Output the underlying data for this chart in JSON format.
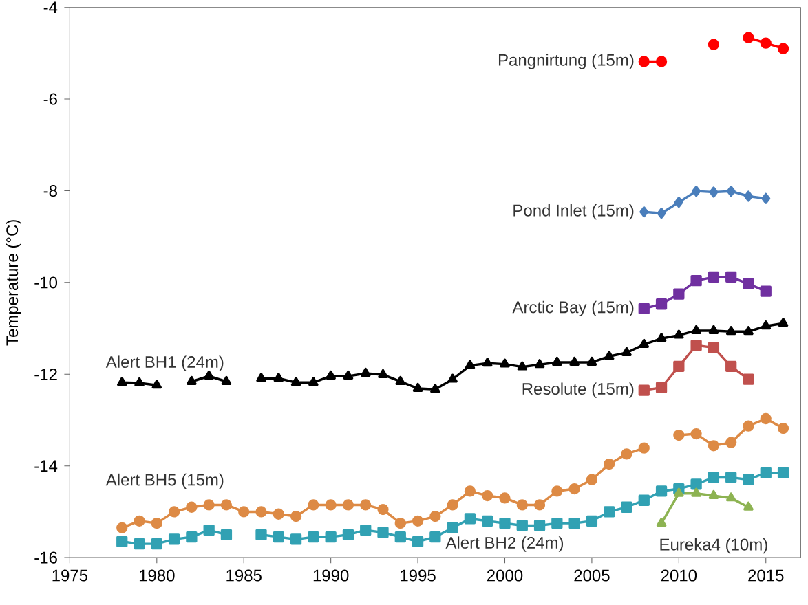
{
  "chart_data": {
    "type": "line",
    "ylabel": "Temperature (°C)",
    "xlim": [
      1975,
      2017
    ],
    "xticks": [
      1975,
      1980,
      1985,
      1990,
      1995,
      2000,
      2005,
      2010,
      2015
    ],
    "ylim": [
      -16,
      -4
    ],
    "yticks": [
      -16,
      -14,
      -12,
      -10,
      -8,
      -6,
      -4
    ],
    "line_style": "solid",
    "series": [
      {
        "name": "Pangnirtung (15m)",
        "color": "#ff0000",
        "marker": "circle",
        "x": [
          2008,
          2009,
          2010,
          2011,
          2012,
          2013,
          2014,
          2015,
          2016
        ],
        "values": [
          -5.18,
          -5.18,
          null,
          null,
          -4.81,
          null,
          -4.66,
          -4.78,
          -4.9
        ]
      },
      {
        "name": "Pond Inlet (15m)",
        "color": "#4a7ebb",
        "marker": "diamond",
        "x": [
          2008,
          2009,
          2010,
          2011,
          2012,
          2013,
          2014,
          2015
        ],
        "values": [
          -8.46,
          -8.49,
          -8.25,
          -8.01,
          -8.03,
          -8.01,
          -8.12,
          -8.17
        ]
      },
      {
        "name": "Arctic Bay (15m)",
        "color": "#7030a0",
        "marker": "square",
        "x": [
          2008,
          2009,
          2010,
          2011,
          2012,
          2013,
          2014,
          2015
        ],
        "values": [
          -10.57,
          -10.47,
          -10.25,
          -9.96,
          -9.88,
          -9.88,
          -10.03,
          -10.19
        ]
      },
      {
        "name": "Resolute (15m)",
        "color": "#c0504d",
        "marker": "square",
        "x": [
          2008,
          2009,
          2010,
          2011,
          2012,
          2013,
          2014
        ],
        "values": [
          -12.35,
          -12.29,
          -11.83,
          -11.37,
          -11.42,
          -11.83,
          -12.11
        ]
      },
      {
        "name": "Alert BH1 (24m)",
        "color": "#000000",
        "marker": "triangle",
        "x": [
          1978,
          1979,
          1980,
          1981,
          1982,
          1983,
          1984,
          1985,
          1986,
          1987,
          1988,
          1989,
          1990,
          1991,
          1992,
          1993,
          1994,
          1995,
          1996,
          1997,
          1998,
          1999,
          2000,
          2001,
          2002,
          2003,
          2004,
          2005,
          2006,
          2007,
          2008,
          2009,
          2010,
          2011,
          2012,
          2013,
          2014,
          2015,
          2016
        ],
        "values": [
          -12.18,
          -12.19,
          -12.24,
          null,
          -12.16,
          -12.04,
          -12.16,
          null,
          -12.09,
          -12.09,
          -12.18,
          -12.18,
          -12.04,
          -12.04,
          -11.98,
          -12.01,
          -12.16,
          -12.31,
          -12.33,
          -12.11,
          -11.81,
          -11.76,
          -11.78,
          -11.84,
          -11.79,
          -11.74,
          -11.74,
          -11.74,
          -11.61,
          -11.53,
          -11.35,
          -11.22,
          -11.15,
          -11.05,
          -11.05,
          -11.07,
          -11.07,
          -10.95,
          -10.89
        ]
      },
      {
        "name": "Alert BH5 (15m)",
        "color": "#dd8a45",
        "marker": "circle",
        "x": [
          1978,
          1979,
          1980,
          1981,
          1982,
          1983,
          1984,
          1985,
          1986,
          1987,
          1988,
          1989,
          1990,
          1991,
          1992,
          1993,
          1994,
          1995,
          1996,
          1997,
          1998,
          1999,
          2000,
          2001,
          2002,
          2003,
          2004,
          2005,
          2006,
          2007,
          2008,
          2009,
          2010,
          2011,
          2012,
          2013,
          2014,
          2015,
          2016
        ],
        "values": [
          -15.35,
          -15.2,
          -15.25,
          -15.0,
          -14.9,
          -14.85,
          -14.85,
          -15.0,
          -15.0,
          -15.05,
          -15.1,
          -14.85,
          -14.85,
          -14.85,
          -14.85,
          -14.95,
          -15.25,
          -15.2,
          -15.1,
          -14.85,
          -14.55,
          -14.65,
          -14.7,
          -14.85,
          -14.85,
          -14.55,
          -14.5,
          -14.3,
          -13.96,
          -13.74,
          -13.61,
          null,
          -13.33,
          -13.3,
          -13.56,
          -13.49,
          -13.13,
          -12.97,
          -13.18
        ]
      },
      {
        "name": "Alert BH2 (24m)",
        "color": "#31a1b3",
        "marker": "square",
        "x": [
          1978,
          1979,
          1980,
          1981,
          1982,
          1983,
          1984,
          1985,
          1986,
          1987,
          1988,
          1989,
          1990,
          1991,
          1992,
          1993,
          1994,
          1995,
          1996,
          1997,
          1998,
          1999,
          2000,
          2001,
          2002,
          2003,
          2004,
          2005,
          2006,
          2007,
          2008,
          2009,
          2010,
          2011,
          2012,
          2013,
          2014,
          2015,
          2016
        ],
        "values": [
          -15.65,
          -15.7,
          -15.7,
          -15.6,
          -15.55,
          -15.4,
          -15.5,
          null,
          -15.5,
          -15.55,
          -15.6,
          -15.55,
          -15.55,
          -15.5,
          -15.4,
          -15.45,
          -15.55,
          -15.65,
          -15.55,
          -15.35,
          -15.15,
          -15.2,
          -15.25,
          -15.3,
          -15.3,
          -15.25,
          -15.25,
          -15.2,
          -15.0,
          -14.9,
          -14.75,
          -14.55,
          -14.5,
          -14.4,
          -14.25,
          -14.25,
          -14.3,
          -14.15,
          -14.15
        ]
      },
      {
        "name": "Eureka4 (10m)",
        "color": "#8db352",
        "marker": "triangle",
        "x": [
          2009,
          2010,
          2011,
          2012,
          2013,
          2014
        ],
        "values": [
          -15.25,
          -14.6,
          -14.6,
          -14.65,
          -14.7,
          -14.9
        ]
      }
    ]
  }
}
